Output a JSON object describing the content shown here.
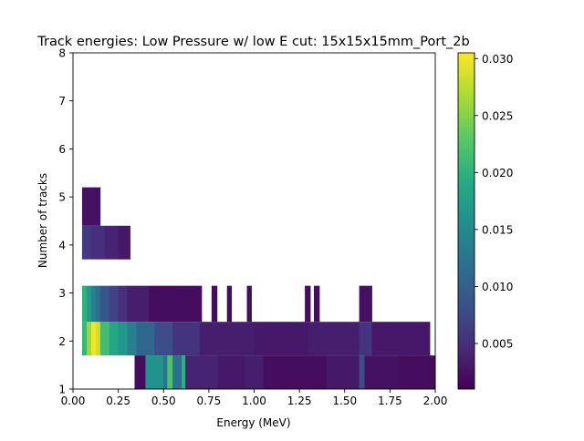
{
  "chart_data": {
    "type": "heatmap",
    "title": "Track energies: Low Pressure w/ low E cut: 15x15x15mm_Port_2b",
    "xlabel": "Energy (MeV)",
    "ylabel": "Number of tracks",
    "xlim": [
      0.0,
      2.0
    ],
    "ylim": [
      1,
      8
    ],
    "xticks": [
      "0.00",
      "0.25",
      "0.50",
      "0.75",
      "1.00",
      "1.25",
      "1.50",
      "1.75",
      "2.00"
    ],
    "yticks": [
      "1",
      "2",
      "3",
      "4",
      "5",
      "6",
      "7",
      "8"
    ],
    "colorbar": {
      "min": 0.001,
      "max": 0.0305,
      "ticks": [
        "0.005",
        "0.010",
        "0.015",
        "0.020",
        "0.025",
        "0.030"
      ],
      "colormap": "viridis"
    },
    "grid": false,
    "rows": [
      {
        "band": [
          1.0,
          1.7
        ],
        "segments": [
          {
            "x0": 0.34,
            "x1": 0.4,
            "value": 0.002
          },
          {
            "x0": 0.4,
            "x1": 0.5,
            "value": 0.016
          },
          {
            "x0": 0.5,
            "x1": 0.52,
            "value": 0.012
          },
          {
            "x0": 0.52,
            "x1": 0.55,
            "value": 0.022
          },
          {
            "x0": 0.55,
            "x1": 0.6,
            "value": 0.012
          },
          {
            "x0": 0.6,
            "x1": 0.62,
            "value": 0.02
          },
          {
            "x0": 0.62,
            "x1": 0.8,
            "value": 0.004
          },
          {
            "x0": 0.8,
            "x1": 0.95,
            "value": 0.003
          },
          {
            "x0": 0.95,
            "x1": 1.05,
            "value": 0.0035
          },
          {
            "x0": 1.05,
            "x1": 1.4,
            "value": 0.002
          },
          {
            "x0": 1.4,
            "x1": 1.58,
            "value": 0.003
          },
          {
            "x0": 1.58,
            "x1": 1.61,
            "value": 0.008
          },
          {
            "x0": 1.61,
            "x1": 1.8,
            "value": 0.0025
          },
          {
            "x0": 1.8,
            "x1": 2.0,
            "value": 0.002
          }
        ]
      },
      {
        "band": [
          1.7,
          2.4
        ],
        "segments": [
          {
            "x0": 0.05,
            "x1": 0.075,
            "value": 0.0205
          },
          {
            "x0": 0.075,
            "x1": 0.1,
            "value": 0.026
          },
          {
            "x0": 0.1,
            "x1": 0.125,
            "value": 0.03
          },
          {
            "x0": 0.125,
            "x1": 0.15,
            "value": 0.0285
          },
          {
            "x0": 0.15,
            "x1": 0.2,
            "value": 0.0215
          },
          {
            "x0": 0.2,
            "x1": 0.25,
            "value": 0.0185
          },
          {
            "x0": 0.25,
            "x1": 0.3,
            "value": 0.0165
          },
          {
            "x0": 0.3,
            "x1": 0.35,
            "value": 0.014
          },
          {
            "x0": 0.35,
            "x1": 0.45,
            "value": 0.011
          },
          {
            "x0": 0.45,
            "x1": 0.55,
            "value": 0.008
          },
          {
            "x0": 0.55,
            "x1": 0.7,
            "value": 0.0055
          },
          {
            "x0": 0.7,
            "x1": 1.0,
            "value": 0.0035
          },
          {
            "x0": 1.0,
            "x1": 1.3,
            "value": 0.003
          },
          {
            "x0": 1.3,
            "x1": 1.58,
            "value": 0.0035
          },
          {
            "x0": 1.58,
            "x1": 1.65,
            "value": 0.0055
          },
          {
            "x0": 1.65,
            "x1": 1.97,
            "value": 0.003
          }
        ]
      },
      {
        "band": [
          2.4,
          3.15
        ],
        "segments": [
          {
            "x0": 0.05,
            "x1": 0.075,
            "value": 0.02
          },
          {
            "x0": 0.075,
            "x1": 0.1,
            "value": 0.017
          },
          {
            "x0": 0.1,
            "x1": 0.125,
            "value": 0.014
          },
          {
            "x0": 0.125,
            "x1": 0.15,
            "value": 0.012
          },
          {
            "x0": 0.15,
            "x1": 0.2,
            "value": 0.009
          },
          {
            "x0": 0.2,
            "x1": 0.25,
            "value": 0.007
          },
          {
            "x0": 0.25,
            "x1": 0.3,
            "value": 0.005
          },
          {
            "x0": 0.3,
            "x1": 0.42,
            "value": 0.0035
          },
          {
            "x0": 0.42,
            "x1": 0.71,
            "value": 0.002
          },
          {
            "x0": 0.765,
            "x1": 0.795,
            "value": 0.002
          },
          {
            "x0": 0.85,
            "x1": 0.875,
            "value": 0.002
          },
          {
            "x0": 0.96,
            "x1": 0.985,
            "value": 0.002
          },
          {
            "x0": 1.28,
            "x1": 1.31,
            "value": 0.002
          },
          {
            "x0": 1.33,
            "x1": 1.36,
            "value": 0.002
          },
          {
            "x0": 1.58,
            "x1": 1.65,
            "value": 0.0025
          }
        ]
      },
      {
        "band": [
          3.7,
          4.4
        ],
        "segments": [
          {
            "x0": 0.05,
            "x1": 0.1,
            "value": 0.006
          },
          {
            "x0": 0.1,
            "x1": 0.175,
            "value": 0.005
          },
          {
            "x0": 0.175,
            "x1": 0.25,
            "value": 0.004
          },
          {
            "x0": 0.25,
            "x1": 0.315,
            "value": 0.003
          }
        ]
      },
      {
        "band": [
          4.4,
          5.2
        ],
        "segments": [
          {
            "x0": 0.05,
            "x1": 0.15,
            "value": 0.0025
          }
        ]
      }
    ]
  }
}
